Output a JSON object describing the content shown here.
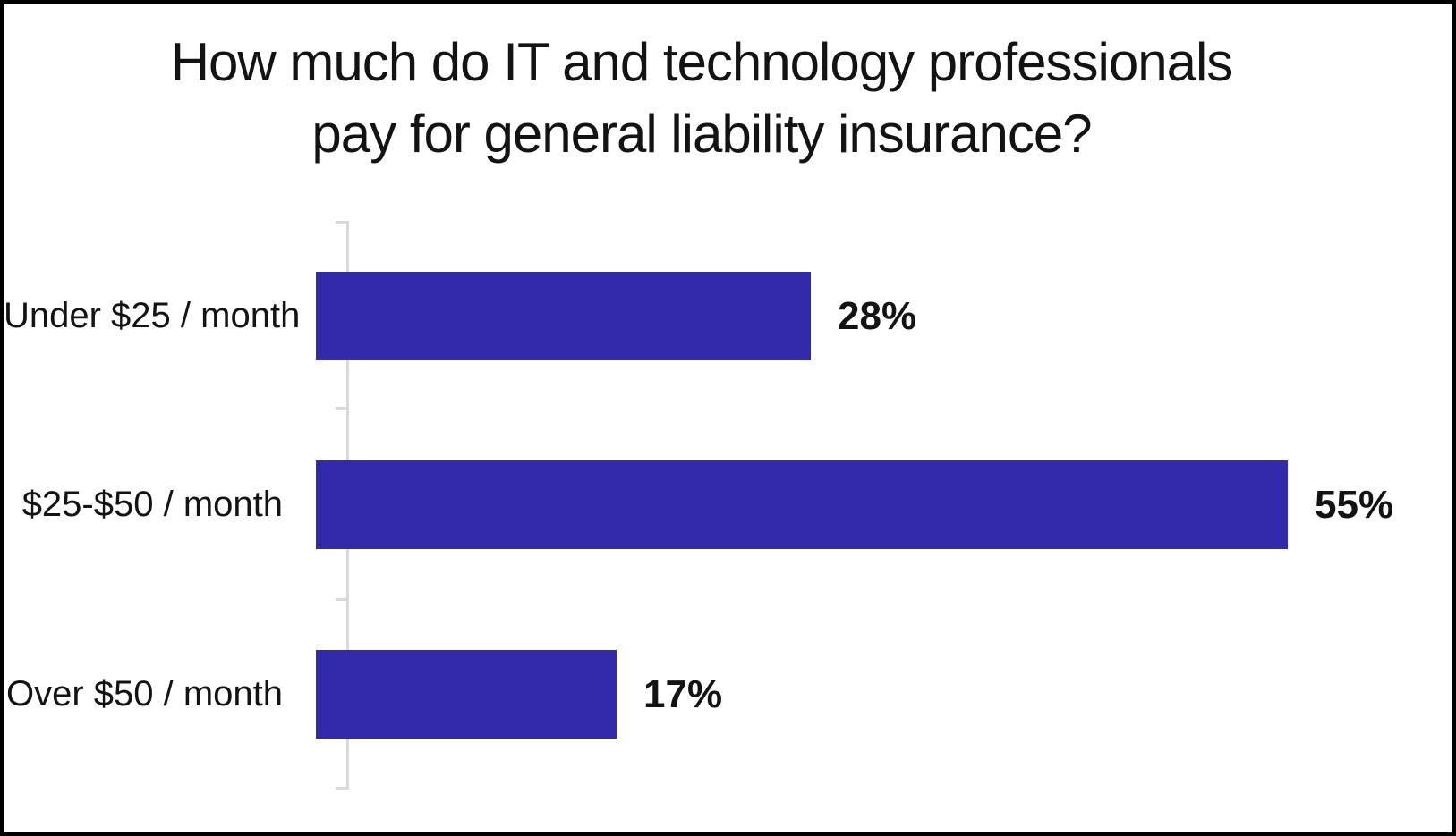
{
  "title": {
    "line1": "How much do IT and technology professionals",
    "line2": "pay for general liability insurance?"
  },
  "colors": {
    "bar": "#3329ab",
    "axis": "#d9d9d9",
    "text": "#131313",
    "background": "#ffffff",
    "border": "#000000"
  },
  "chart_data": {
    "type": "bar",
    "orientation": "horizontal",
    "title": "How much do IT and technology professionals pay for general liability insurance?",
    "categories": [
      "Under $25 / month",
      "$25-$50 / month",
      "Over $50 / month"
    ],
    "values": [
      28,
      55,
      17
    ],
    "value_labels": [
      "28%",
      "55%",
      "17%"
    ],
    "xlabel": "",
    "ylabel": "",
    "xlim": [
      0,
      55
    ],
    "grid": false,
    "legend": null,
    "bar_color": "#3329ab",
    "value_label_position": "right-of-bar"
  }
}
